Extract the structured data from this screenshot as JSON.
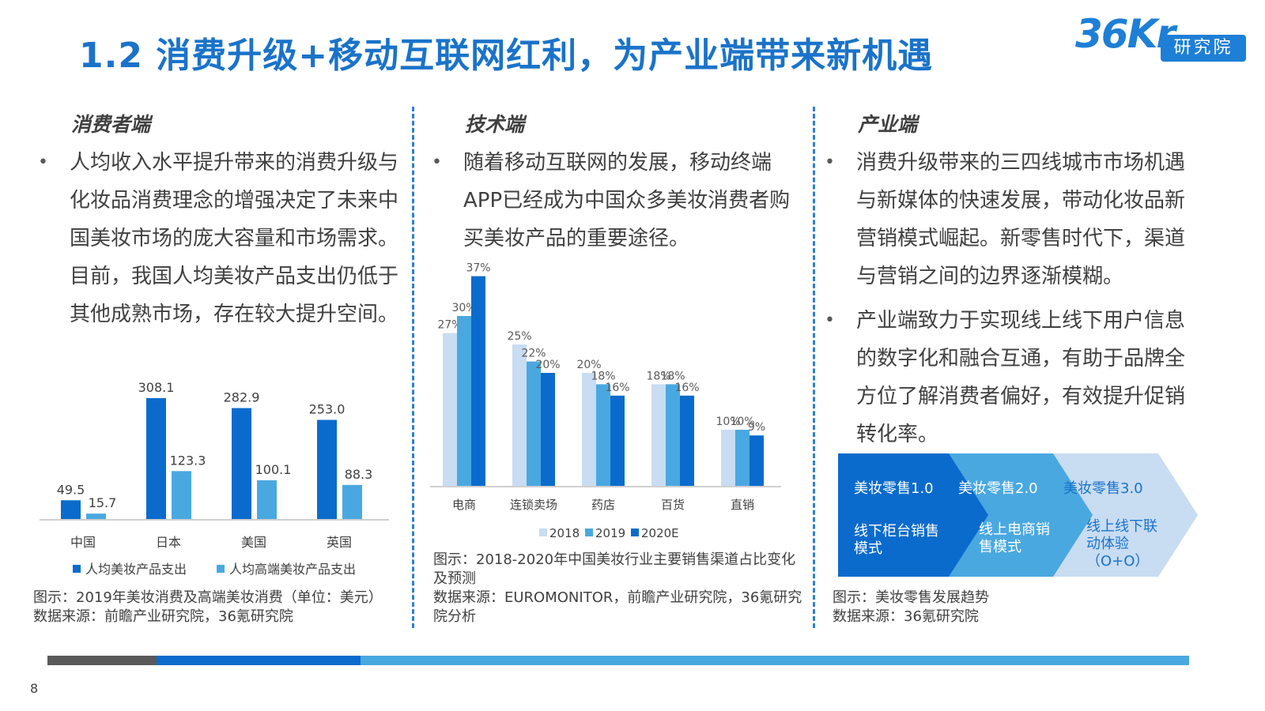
{
  "title": "1.2 消费升级+移动互联网红利，为产业端带来新机遇",
  "logo": {
    "mark": "36Kr",
    "text": "研究院"
  },
  "colors": {
    "brand": "#1a73c9",
    "series_dark": "#0b6bcc",
    "series_mid": "#4aa8e0",
    "series_light": "#c8dcf2"
  },
  "columns": {
    "consumer": {
      "heading": "消费者端",
      "bullets": [
        "人均收入水平提升带来的消费升级与化妆品消费理念的增强决定了未来中国美妆市场的庞大容量和市场需求。目前，我国人均美妆产品支出仍低于其他成熟市场，存在较大提升空间。"
      ],
      "caption": "图示：2019年美妆消费及高端美妆消费（单位：美元）",
      "source": "数据来源：前瞻产业研究院，36氪研究院"
    },
    "tech": {
      "heading": "技术端",
      "bullets": [
        "随着移动互联网的发展，移动终端APP已经成为中国众多美妆消费者购买美妆产品的重要途径。"
      ],
      "caption": "图示：2018-2020年中国美妆行业主要销售渠道占比变化及预测",
      "source": "数据来源：EUROMONITOR，前瞻产业研究院，36氪研究院分析"
    },
    "industry": {
      "heading": "产业端",
      "bullets": [
        "消费升级带来的三四线城市市场机遇与新媒体的快速发展，带动化妆品新营销模式崛起。新零售时代下，渠道与营销之间的边界逐渐模糊。",
        "产业端致力于实现线上线下用户信息的数字化和融合互通，有助于品牌全方位了解消费者偏好，有效提升促销转化率。"
      ],
      "caption": "图示：美妆零售发展趋势",
      "source": "数据来源：36氪研究院"
    }
  },
  "chart_data": [
    {
      "type": "bar",
      "categories": [
        "中国",
        "日本",
        "美国",
        "英国"
      ],
      "series": [
        {
          "name": "人均美妆产品支出",
          "values": [
            49.5,
            308.1,
            282.9,
            253.0
          ],
          "labels": [
            "49.5",
            "308.1",
            "282.9",
            "253.0"
          ]
        },
        {
          "name": "人均高端美妆产品支出",
          "values": [
            15.7,
            123.3,
            100.1,
            88.3
          ],
          "labels": [
            "15.7",
            "123.3",
            "100.1",
            "88.3"
          ]
        }
      ],
      "ylim": [
        0,
        330
      ],
      "legend_position": "bottom",
      "grid": false
    },
    {
      "type": "bar",
      "categories": [
        "电商",
        "连锁卖场",
        "药店",
        "百货",
        "直销"
      ],
      "series": [
        {
          "name": "2018",
          "values": [
            27,
            25,
            20,
            18,
            10
          ],
          "labels": [
            "27%",
            "25%",
            "20%",
            "18%",
            "10%"
          ]
        },
        {
          "name": "2019",
          "values": [
            30,
            22,
            18,
            18,
            10
          ],
          "labels": [
            "30%",
            "22%",
            "18%",
            "18%",
            "10%"
          ]
        },
        {
          "name": "2020E",
          "values": [
            37,
            20,
            16,
            16,
            9
          ],
          "labels": [
            "37%",
            "20%",
            "16%",
            "16%",
            "9%"
          ]
        }
      ],
      "ylim": [
        0,
        40
      ],
      "legend_position": "bottom",
      "grid": false
    }
  ],
  "retail_stages": [
    {
      "title": "美妆零售1.0",
      "desc": "线下柜台销售模式"
    },
    {
      "title": "美妆零售2.0",
      "desc": "线上电商销售模式"
    },
    {
      "title": "美妆零售3.0",
      "desc": "线上线下联动体验（O+O）"
    }
  ],
  "page_number": "8"
}
